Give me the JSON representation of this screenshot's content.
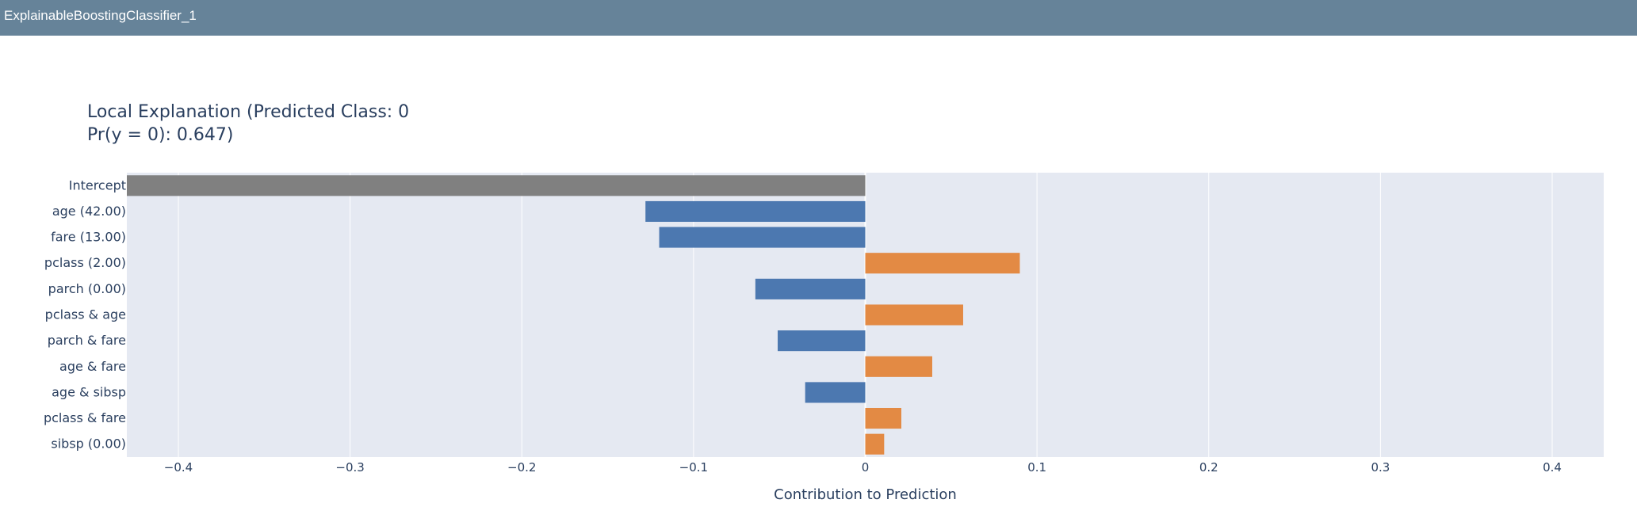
{
  "window": {
    "title": "ExplainableBoostingClassifier_1"
  },
  "chart_data": {
    "type": "bar",
    "orientation": "horizontal",
    "title_lines": [
      "Local Explanation (Predicted Class: 0",
      "Pr(y = 0): 0.647)"
    ],
    "xlabel": "Contribution to Prediction",
    "ylabel": "",
    "xlim": [
      -0.43,
      0.43
    ],
    "x_ticks": [
      -0.4,
      -0.3,
      -0.2,
      -0.1,
      0,
      0.1,
      0.2,
      0.3,
      0.4
    ],
    "x_tick_labels": [
      "−0.4",
      "−0.3",
      "−0.2",
      "−0.1",
      "0",
      "0.1",
      "0.2",
      "0.3",
      "0.4"
    ],
    "grid": true,
    "colors": {
      "intercept": "#808080",
      "negative": "#4c78b0",
      "positive": "#e38a44",
      "plot_bg": "#e5e9f2",
      "grid": "#ffffff"
    },
    "categories": [
      "Intercept",
      "age (42.00)",
      "fare (13.00)",
      "pclass (2.00)",
      "parch (0.00)",
      "pclass & age",
      "parch & fare",
      "age & fare",
      "age & sibsp",
      "pclass & fare",
      "sibsp (0.00)"
    ],
    "values": [
      -0.43,
      -0.128,
      -0.12,
      0.09,
      -0.064,
      0.057,
      -0.051,
      0.039,
      -0.035,
      0.021,
      0.011
    ]
  }
}
